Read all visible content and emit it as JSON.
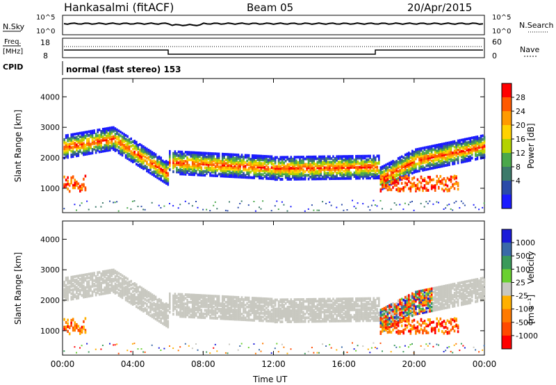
{
  "header": {
    "station": "Hankasalmi (fitACF)",
    "beam": "Beam 05",
    "date": "20/Apr/2015"
  },
  "noise_panel": {
    "left_label": "N.Sky",
    "left_ticks": [
      "10^5",
      "10^0"
    ],
    "right_label": "N.Search",
    "right_ticks": [
      "10^5",
      "10^0"
    ]
  },
  "freq_panel": {
    "left_label_1": "Freq.",
    "left_label_2": "[MHz]",
    "left_ticks": [
      "18",
      "8"
    ],
    "right_label": "Nave",
    "right_ticks": [
      "60",
      "0"
    ]
  },
  "cpid_panel": {
    "label": "CPID",
    "text": "normal (fast stereo) 153"
  },
  "chart_data": [
    {
      "type": "heatmap",
      "name": "power",
      "ylabel": "Slant Range [km]",
      "yticks": [
        1000,
        2000,
        3000,
        4000
      ],
      "ylim": [
        200,
        4600
      ],
      "xlim_hours": [
        0,
        24
      ],
      "colorbar": {
        "label": "Power [dB]",
        "ticks": [
          "28",
          "24",
          "20",
          "16",
          "12",
          "8",
          "4"
        ],
        "colors": [
          "#ff0000",
          "#ff5a00",
          "#ff9a00",
          "#ffd200",
          "#b4d200",
          "#4aa84a",
          "#3c7a6a",
          "#2a4aa8",
          "#1a1aff"
        ]
      }
    },
    {
      "type": "heatmap",
      "name": "velocity",
      "ylabel": "Slant Range [km]",
      "yticks": [
        1000,
        2000,
        3000,
        4000
      ],
      "ylim": [
        200,
        4600
      ],
      "xlim_hours": [
        0,
        24
      ],
      "xticks": [
        "00:00",
        "04:00",
        "08:00",
        "12:00",
        "16:00",
        "20:00",
        "00:00"
      ],
      "xlabel": "Time UT",
      "colorbar": {
        "label": "Velocity",
        "unit": "[m s⁻¹]",
        "ticks": [
          "1000",
          "500",
          "100",
          "25",
          "-25",
          "-100",
          "-500",
          "-1000"
        ],
        "colors": [
          "#1a1ad8",
          "#3a6aa8",
          "#3a9a5a",
          "#6ad030",
          "#c8c8c0",
          "#ffb000",
          "#ff7a00",
          "#ff4a00",
          "#ff0000"
        ]
      }
    }
  ]
}
